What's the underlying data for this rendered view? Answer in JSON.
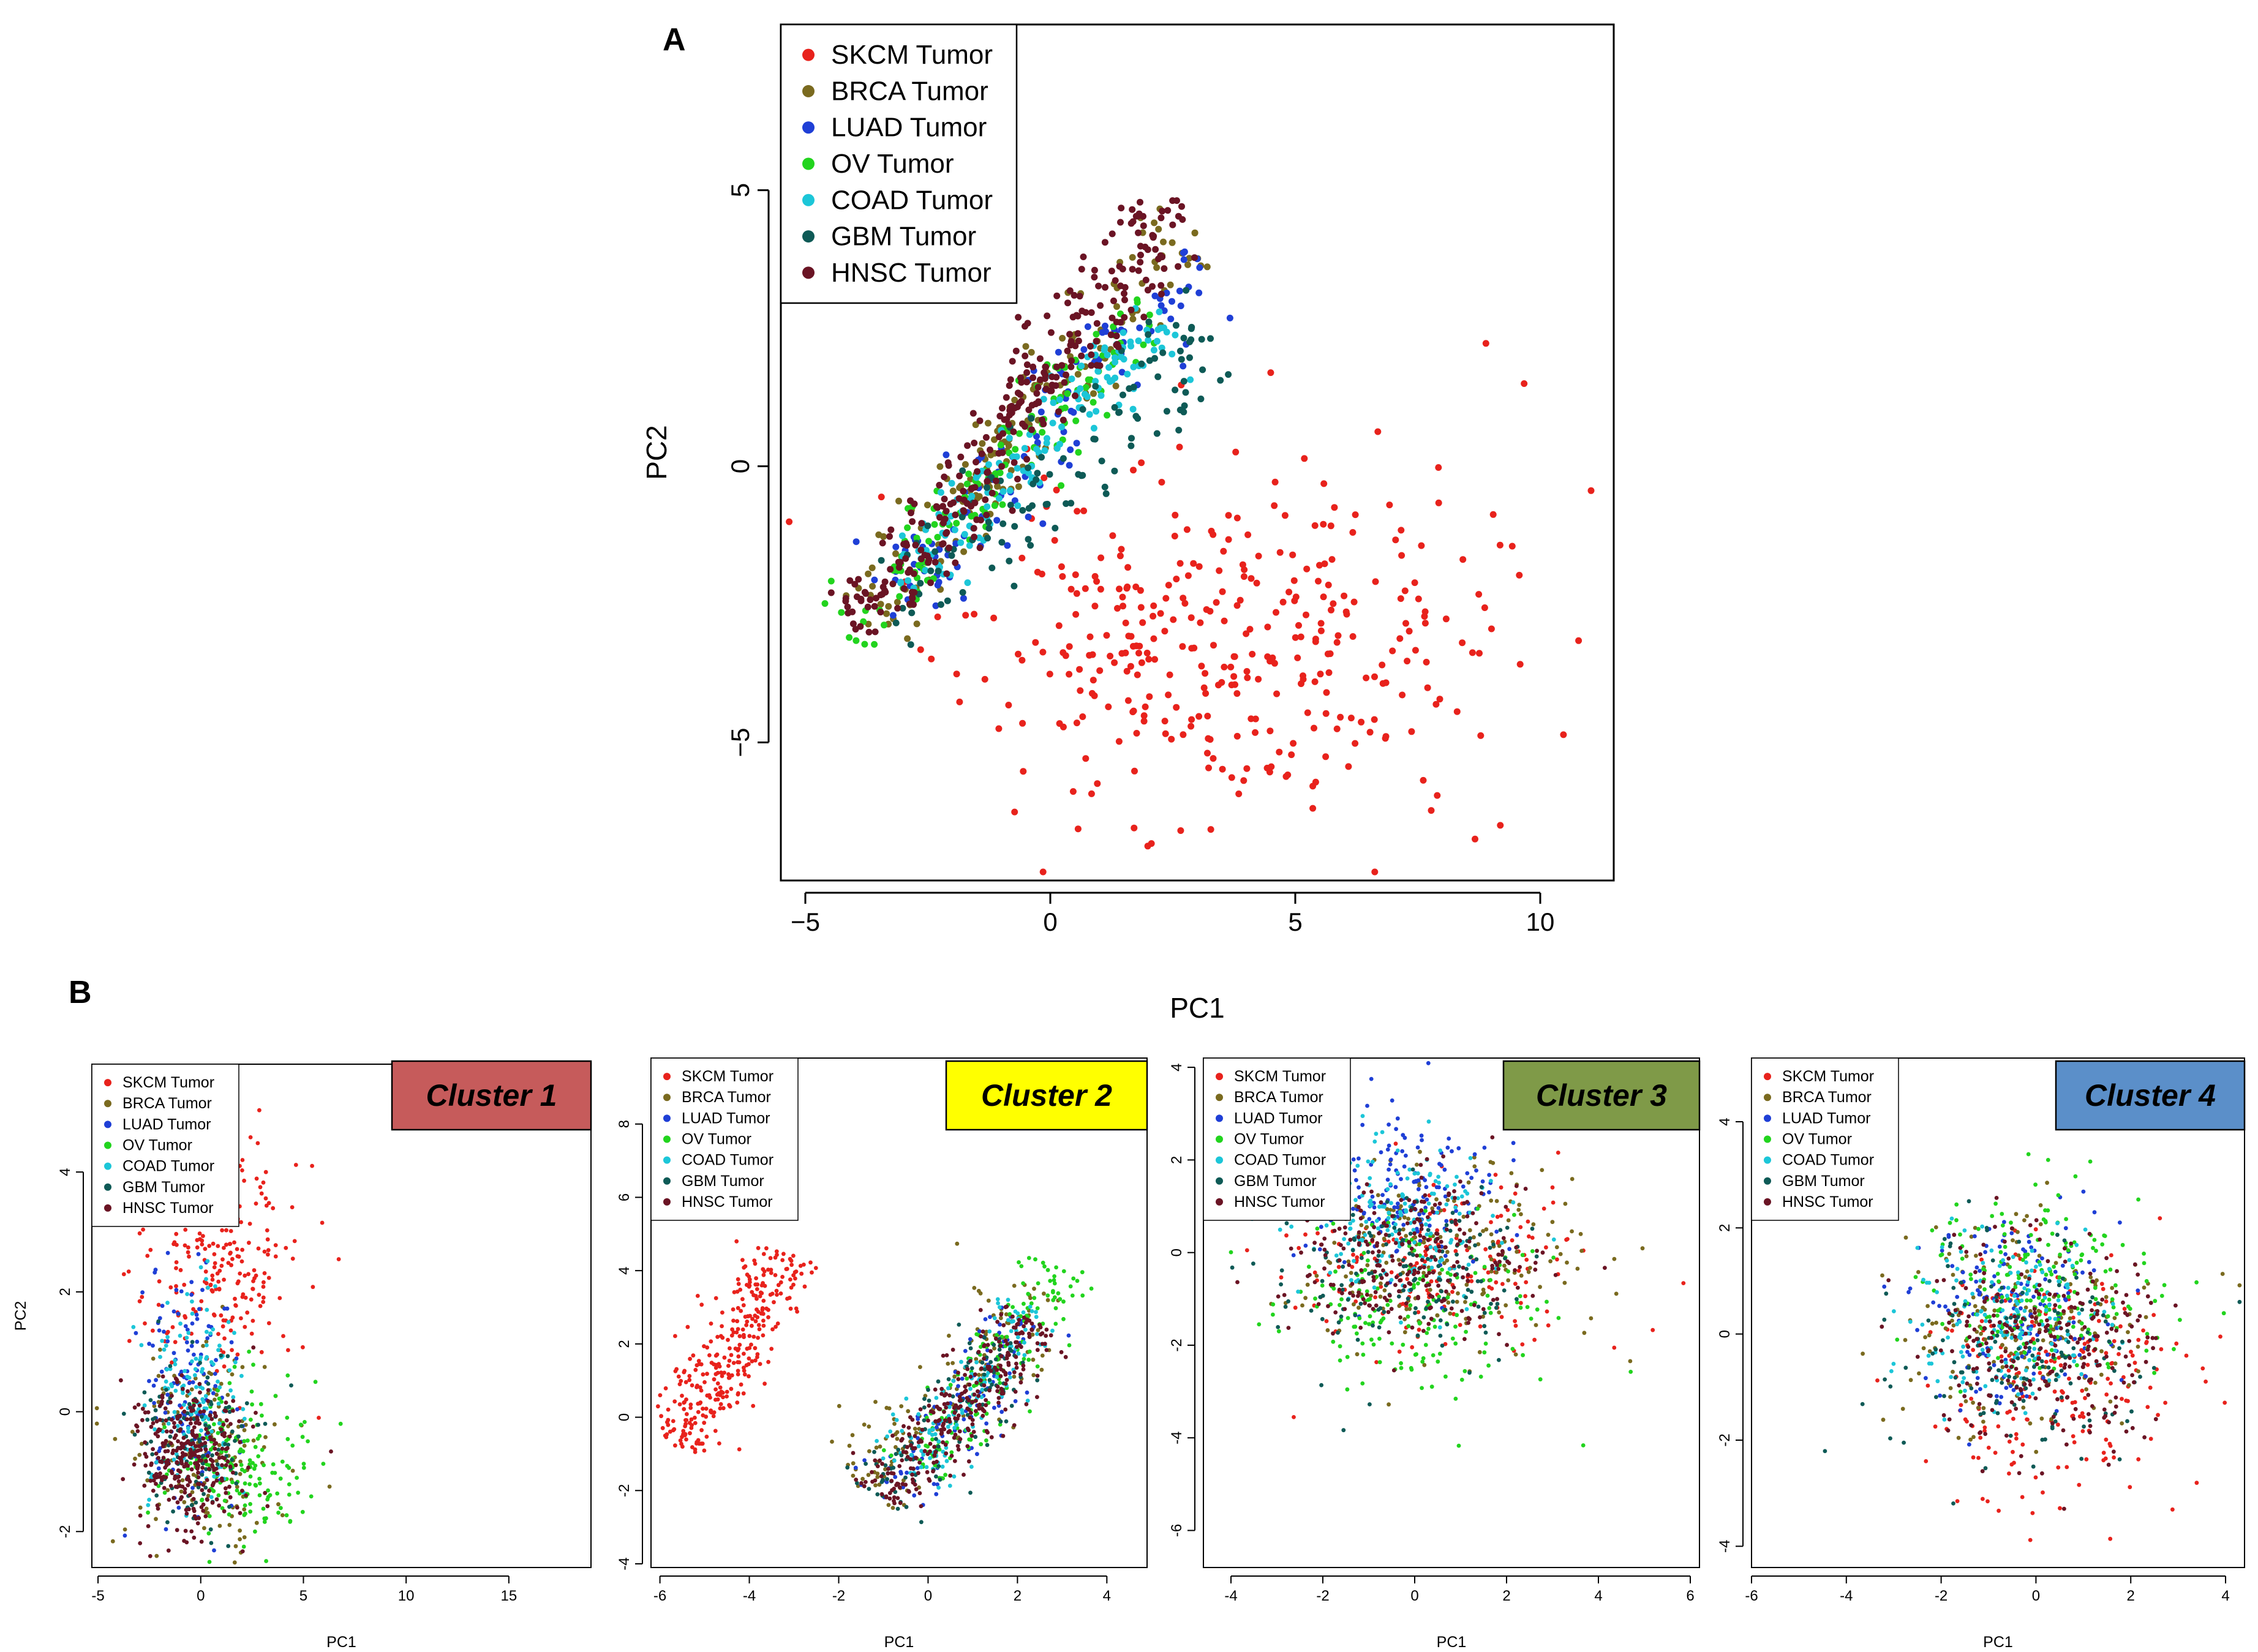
{
  "figure": {
    "panel_a_letter": "A",
    "panel_b_letter": "B"
  },
  "legend_entries": [
    {
      "label": "SKCM Tumor",
      "color": "#e8221c"
    },
    {
      "label": "BRCA Tumor",
      "color": "#7a6a1f"
    },
    {
      "label": "LUAD Tumor",
      "color": "#1f3fd6"
    },
    {
      "label": "OV Tumor",
      "color": "#22d41e"
    },
    {
      "label": "COAD Tumor",
      "color": "#1cc6d8"
    },
    {
      "label": "GBM Tumor",
      "color": "#0e5a56"
    },
    {
      "label": "HNSC Tumor",
      "color": "#6a1424"
    }
  ],
  "chart_data": [
    {
      "id": "A",
      "type": "scatter",
      "title": "",
      "xlabel": "PC1",
      "ylabel": "PC2",
      "xlim": [
        -5.5,
        11.5
      ],
      "ylim": [
        -7.5,
        8
      ],
      "xticks": [
        -5,
        0,
        5,
        10
      ],
      "yticks": [
        -5,
        0,
        5
      ],
      "tick_labels_x": [
        "−5",
        "0",
        "5",
        "10"
      ],
      "tick_labels_y": [
        "−5",
        "0",
        "5"
      ],
      "legend_position": "top-left",
      "series": [
        {
          "name": "SKCM Tumor",
          "distribution": "cloud",
          "n": 360,
          "center": [
            3.5,
            -3.3
          ],
          "spread": [
            2.6,
            1.6
          ],
          "seed": 11
        },
        {
          "name": "BRCA Tumor",
          "distribution": "band",
          "n": 160,
          "from": [
            -3.8,
            -2.8
          ],
          "to": [
            2.8,
            4.4
          ],
          "width": 0.8,
          "seed": 12
        },
        {
          "name": "LUAD Tumor",
          "distribution": "band",
          "n": 110,
          "from": [
            -3.4,
            -2.6
          ],
          "to": [
            3.2,
            3.6
          ],
          "width": 1.0,
          "seed": 13
        },
        {
          "name": "OV Tumor",
          "distribution": "band",
          "n": 130,
          "from": [
            -4.2,
            -3.0
          ],
          "to": [
            2.0,
            2.8
          ],
          "width": 0.65,
          "seed": 14
        },
        {
          "name": "COAD Tumor",
          "distribution": "band",
          "n": 140,
          "from": [
            -3.0,
            -2.2
          ],
          "to": [
            2.4,
            2.8
          ],
          "width": 0.7,
          "seed": 15
        },
        {
          "name": "GBM Tumor",
          "distribution": "band",
          "n": 110,
          "from": [
            -3.4,
            -2.8
          ],
          "to": [
            3.4,
            2.4
          ],
          "width": 1.0,
          "seed": 16
        },
        {
          "name": "HNSC Tumor",
          "distribution": "band",
          "n": 300,
          "from": [
            -4.0,
            -3.0
          ],
          "to": [
            2.6,
            4.8
          ],
          "width": 0.8,
          "seed": 17
        }
      ]
    },
    {
      "id": "B1",
      "type": "scatter",
      "title": "Cluster 1",
      "title_bg": "#c65b5b",
      "xlabel": "PC1",
      "ylabel": "PC2",
      "xlim": [
        -5.3,
        19
      ],
      "ylim": [
        -2.6,
        5.8
      ],
      "xticks": [
        -5,
        0,
        5,
        10,
        15
      ],
      "yticks": [
        -2,
        0,
        2,
        4
      ],
      "tick_labels_x": [
        "-5",
        "0",
        "5",
        "10",
        "15"
      ],
      "tick_labels_y": [
        "-2",
        "0",
        "2",
        "4"
      ],
      "legend_position": "top-left",
      "series": [
        {
          "name": "SKCM Tumor",
          "distribution": "cloud",
          "n": 260,
          "center": [
            0.8,
            2.6
          ],
          "spread": [
            2.0,
            1.1
          ],
          "seed": 21
        },
        {
          "name": "BRCA Tumor",
          "distribution": "cloud",
          "n": 150,
          "center": [
            0.0,
            -0.5
          ],
          "spread": [
            2.0,
            0.8
          ],
          "seed": 22
        },
        {
          "name": "LUAD Tumor",
          "distribution": "cloud",
          "n": 130,
          "center": [
            -0.6,
            0.4
          ],
          "spread": [
            1.2,
            1.1
          ],
          "seed": 23
        },
        {
          "name": "OV Tumor",
          "distribution": "cloud",
          "n": 170,
          "center": [
            1.6,
            -0.9
          ],
          "spread": [
            1.8,
            0.6
          ],
          "seed": 24
        },
        {
          "name": "COAD Tumor",
          "distribution": "cloud",
          "n": 140,
          "center": [
            -0.4,
            0.2
          ],
          "spread": [
            1.1,
            0.9
          ],
          "seed": 25
        },
        {
          "name": "GBM Tumor",
          "distribution": "cloud",
          "n": 110,
          "center": [
            -0.2,
            -0.6
          ],
          "spread": [
            1.5,
            0.7
          ],
          "seed": 26
        },
        {
          "name": "HNSC Tumor",
          "distribution": "cloud",
          "n": 320,
          "center": [
            -0.5,
            -0.8
          ],
          "spread": [
            1.3,
            0.6
          ],
          "seed": 27
        }
      ]
    },
    {
      "id": "B2",
      "type": "scatter",
      "title": "Cluster 2",
      "title_bg": "#ffff00",
      "xlabel": "PC1",
      "ylabel": "",
      "xlim": [
        -6.2,
        4.9
      ],
      "ylim": [
        -4.1,
        9.8
      ],
      "xticks": [
        -6,
        -4,
        -2,
        0,
        2,
        4
      ],
      "yticks": [
        -4,
        -2,
        0,
        2,
        4,
        6,
        8
      ],
      "tick_labels_x": [
        "-6",
        "-4",
        "-2",
        "0",
        "2",
        "4"
      ],
      "tick_labels_y": [
        "-4",
        "-2",
        "0",
        "2",
        "4",
        "6",
        "8"
      ],
      "legend_position": "top-left",
      "series": [
        {
          "name": "SKCM Tumor",
          "distribution": "band",
          "n": 330,
          "from": [
            -5.6,
            -0.8
          ],
          "to": [
            -3.2,
            4.5
          ],
          "width": 0.9,
          "seed": 31
        },
        {
          "name": "BRCA Tumor",
          "distribution": "band",
          "n": 150,
          "from": [
            -1.5,
            -2.0
          ],
          "to": [
            2.5,
            3.5
          ],
          "width": 1.2,
          "seed": 32
        },
        {
          "name": "LUAD Tumor",
          "distribution": "band",
          "n": 100,
          "from": [
            -0.8,
            -2.4
          ],
          "to": [
            2.2,
            2.8
          ],
          "width": 1.0,
          "seed": 33
        },
        {
          "name": "OV Tumor",
          "distribution": "band",
          "n": 150,
          "from": [
            0.0,
            -1.6
          ],
          "to": [
            3.0,
            4.2
          ],
          "width": 1.0,
          "seed": 34
        },
        {
          "name": "COAD Tumor",
          "distribution": "band",
          "n": 120,
          "from": [
            -0.5,
            -1.5
          ],
          "to": [
            2.4,
            3.0
          ],
          "width": 1.0,
          "seed": 35
        },
        {
          "name": "GBM Tumor",
          "distribution": "band",
          "n": 110,
          "from": [
            -1.2,
            -2.2
          ],
          "to": [
            2.0,
            2.0
          ],
          "width": 1.0,
          "seed": 36
        },
        {
          "name": "HNSC Tumor",
          "distribution": "band",
          "n": 300,
          "from": [
            -1.0,
            -2.2
          ],
          "to": [
            2.4,
            2.6
          ],
          "width": 0.9,
          "seed": 37
        }
      ]
    },
    {
      "id": "B3",
      "type": "scatter",
      "title": "Cluster 3",
      "title_bg": "#7f9a48",
      "xlabel": "PC1",
      "ylabel": "",
      "xlim": [
        -4.6,
        6.2
      ],
      "ylim": [
        -6.8,
        4.2
      ],
      "xticks": [
        -4,
        -2,
        0,
        2,
        4,
        6
      ],
      "yticks": [
        -6,
        -4,
        -2,
        0,
        2,
        4
      ],
      "tick_labels_x": [
        "-4",
        "-2",
        "0",
        "2",
        "4",
        "6"
      ],
      "tick_labels_y": [
        "-6",
        "-4",
        "-2",
        "0",
        "2",
        "4"
      ],
      "legend_position": "top-left",
      "series": [
        {
          "name": "SKCM Tumor",
          "distribution": "cloud",
          "n": 180,
          "center": [
            0.6,
            -0.2
          ],
          "spread": [
            1.6,
            1.0
          ],
          "seed": 41
        },
        {
          "name": "BRCA Tumor",
          "distribution": "cloud",
          "n": 200,
          "center": [
            0.5,
            0.0
          ],
          "spread": [
            1.6,
            1.0
          ],
          "seed": 42
        },
        {
          "name": "LUAD Tumor",
          "distribution": "cloud",
          "n": 170,
          "center": [
            -0.4,
            1.2
          ],
          "spread": [
            1.1,
            0.9
          ],
          "seed": 43
        },
        {
          "name": "OV Tumor",
          "distribution": "cloud",
          "n": 170,
          "center": [
            -0.2,
            -1.3
          ],
          "spread": [
            1.5,
            0.9
          ],
          "seed": 44
        },
        {
          "name": "COAD Tumor",
          "distribution": "cloud",
          "n": 170,
          "center": [
            -0.3,
            0.6
          ],
          "spread": [
            1.0,
            0.8
          ],
          "seed": 45
        },
        {
          "name": "GBM Tumor",
          "distribution": "cloud",
          "n": 150,
          "center": [
            0.0,
            -0.4
          ],
          "spread": [
            1.3,
            0.9
          ],
          "seed": 46
        },
        {
          "name": "HNSC Tumor",
          "distribution": "cloud",
          "n": 260,
          "center": [
            0.0,
            -0.2
          ],
          "spread": [
            1.3,
            0.9
          ],
          "seed": 47
        }
      ]
    },
    {
      "id": "B4",
      "type": "scatter",
      "title": "Cluster 4",
      "title_bg": "#5b8fc9",
      "xlabel": "PC1",
      "ylabel": "",
      "xlim": [
        -6.0,
        4.4
      ],
      "ylim": [
        -4.4,
        5.2
      ],
      "xticks": [
        -6,
        -4,
        -2,
        0,
        2,
        4
      ],
      "yticks": [
        -4,
        -2,
        0,
        2,
        4
      ],
      "tick_labels_x": [
        "-6",
        "-4",
        "-2",
        "0",
        "2",
        "4"
      ],
      "tick_labels_y": [
        "-4",
        "-2",
        "0",
        "2",
        "4"
      ],
      "legend_position": "top-left",
      "series": [
        {
          "name": "SKCM Tumor",
          "distribution": "cloud",
          "n": 210,
          "center": [
            0.2,
            -1.0
          ],
          "spread": [
            1.3,
            1.2
          ],
          "seed": 51
        },
        {
          "name": "BRCA Tumor",
          "distribution": "cloud",
          "n": 190,
          "center": [
            0.0,
            0.2
          ],
          "spread": [
            1.3,
            1.1
          ],
          "seed": 52
        },
        {
          "name": "LUAD Tumor",
          "distribution": "cloud",
          "n": 150,
          "center": [
            -0.5,
            0.5
          ],
          "spread": [
            1.0,
            0.9
          ],
          "seed": 53
        },
        {
          "name": "OV Tumor",
          "distribution": "cloud",
          "n": 200,
          "center": [
            0.2,
            0.9
          ],
          "spread": [
            1.2,
            0.9
          ],
          "seed": 54
        },
        {
          "name": "COAD Tumor",
          "distribution": "cloud",
          "n": 170,
          "center": [
            -0.6,
            0.3
          ],
          "spread": [
            1.0,
            0.8
          ],
          "seed": 55
        },
        {
          "name": "GBM Tumor",
          "distribution": "cloud",
          "n": 140,
          "center": [
            -0.3,
            -0.4
          ],
          "spread": [
            1.3,
            1.0
          ],
          "seed": 56
        },
        {
          "name": "HNSC Tumor",
          "distribution": "cloud",
          "n": 250,
          "center": [
            0.1,
            -0.2
          ],
          "spread": [
            1.2,
            1.0
          ],
          "seed": 57
        }
      ]
    }
  ]
}
